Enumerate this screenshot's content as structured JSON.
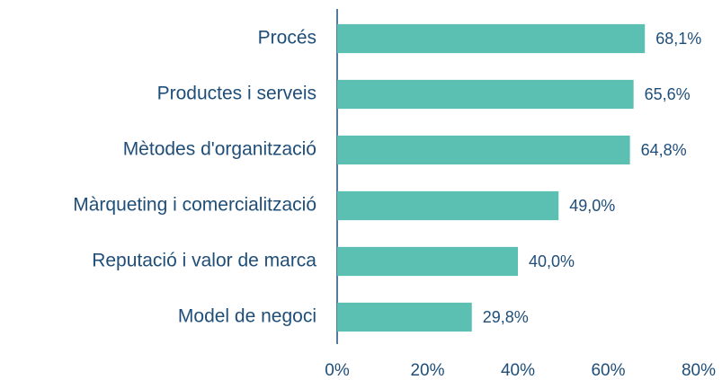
{
  "chart_data": {
    "type": "barh",
    "categories": [
      "Procés",
      "Productes i serveis",
      "Mètodes d'organització",
      "Màrqueting i comercialització",
      "Reputació i valor de marca",
      "Model de negoci"
    ],
    "values": [
      68.1,
      65.6,
      64.8,
      49.0,
      40.0,
      29.8
    ],
    "value_labels": [
      "68,1%",
      "65,6%",
      "64,8%",
      "49,0%",
      "40,0%",
      "29,8%"
    ],
    "color": "#5bbfb2",
    "xlim": [
      0,
      80
    ],
    "xticks": [
      {
        "value": 0,
        "label": "0%"
      },
      {
        "value": 20,
        "label": "20%"
      },
      {
        "value": 40,
        "label": "40%"
      },
      {
        "value": 60,
        "label": "60%"
      },
      {
        "value": 80,
        "label": "80%"
      }
    ],
    "grid": false
  }
}
